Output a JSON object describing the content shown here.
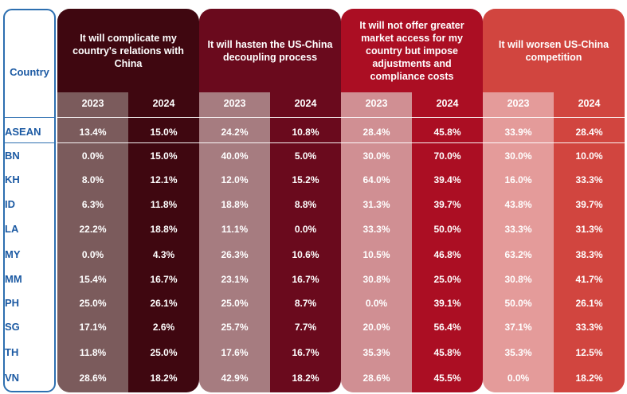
{
  "chart_data": {
    "type": "table",
    "row_header": "Country",
    "years": [
      "2023",
      "2024"
    ],
    "columns": [
      {
        "question": "It will complicate my country's relations with China",
        "colors": {
          "a": "#7a5353",
          "b": "#3f0710",
          "pale": "#7b5b5c"
        }
      },
      {
        "question": "It will hasten the US-China decoupling process",
        "colors": {
          "a": "#a9777c",
          "b": "#6a0a1d",
          "pale": "#a67c80"
        }
      },
      {
        "question": "It will not offer greater market access for my country but impose adjustments and compliance costs",
        "colors": {
          "a": "#c98a8f",
          "b": "#ab0e23",
          "pale": "#d08f93"
        }
      },
      {
        "question": "It will worsen US-China competition",
        "colors": {
          "a": "#e1a3a2",
          "b": "#d1453f",
          "pale": "#e49b9a"
        }
      }
    ],
    "rows": [
      {
        "country": "ASEAN",
        "values": [
          "13.4%",
          "15.0%",
          "24.2%",
          "10.8%",
          "28.4%",
          "45.8%",
          "33.9%",
          "28.4%"
        ]
      },
      {
        "country": "BN",
        "values": [
          "0.0%",
          "15.0%",
          "40.0%",
          "5.0%",
          "30.0%",
          "70.0%",
          "30.0%",
          "10.0%"
        ]
      },
      {
        "country": "KH",
        "values": [
          "8.0%",
          "12.1%",
          "12.0%",
          "15.2%",
          "64.0%",
          "39.4%",
          "16.0%",
          "33.3%"
        ]
      },
      {
        "country": "ID",
        "values": [
          "6.3%",
          "11.8%",
          "18.8%",
          "8.8%",
          "31.3%",
          "39.7%",
          "43.8%",
          "39.7%"
        ]
      },
      {
        "country": "LA",
        "values": [
          "22.2%",
          "18.8%",
          "11.1%",
          "0.0%",
          "33.3%",
          "50.0%",
          "33.3%",
          "31.3%"
        ]
      },
      {
        "country": "MY",
        "values": [
          "0.0%",
          "4.3%",
          "26.3%",
          "10.6%",
          "10.5%",
          "46.8%",
          "63.2%",
          "38.3%"
        ]
      },
      {
        "country": "MM",
        "values": [
          "15.4%",
          "16.7%",
          "23.1%",
          "16.7%",
          "30.8%",
          "25.0%",
          "30.8%",
          "41.7%"
        ]
      },
      {
        "country": "PH",
        "values": [
          "25.0%",
          "26.1%",
          "25.0%",
          "8.7%",
          "0.0%",
          "39.1%",
          "50.0%",
          "26.1%"
        ]
      },
      {
        "country": "SG",
        "values": [
          "17.1%",
          "2.6%",
          "25.7%",
          "7.7%",
          "20.0%",
          "56.4%",
          "37.1%",
          "33.3%"
        ]
      },
      {
        "country": "TH",
        "values": [
          "11.8%",
          "25.0%",
          "17.6%",
          "16.7%",
          "35.3%",
          "45.8%",
          "35.3%",
          "12.5%"
        ]
      },
      {
        "country": "VN",
        "values": [
          "28.6%",
          "18.2%",
          "42.9%",
          "18.2%",
          "28.6%",
          "45.5%",
          "0.0%",
          "18.2%"
        ]
      }
    ],
    "colors": {
      "country_border": "#2d6fb0",
      "country_text": "#1c5aa3",
      "cell_text": "#ffffff"
    }
  }
}
